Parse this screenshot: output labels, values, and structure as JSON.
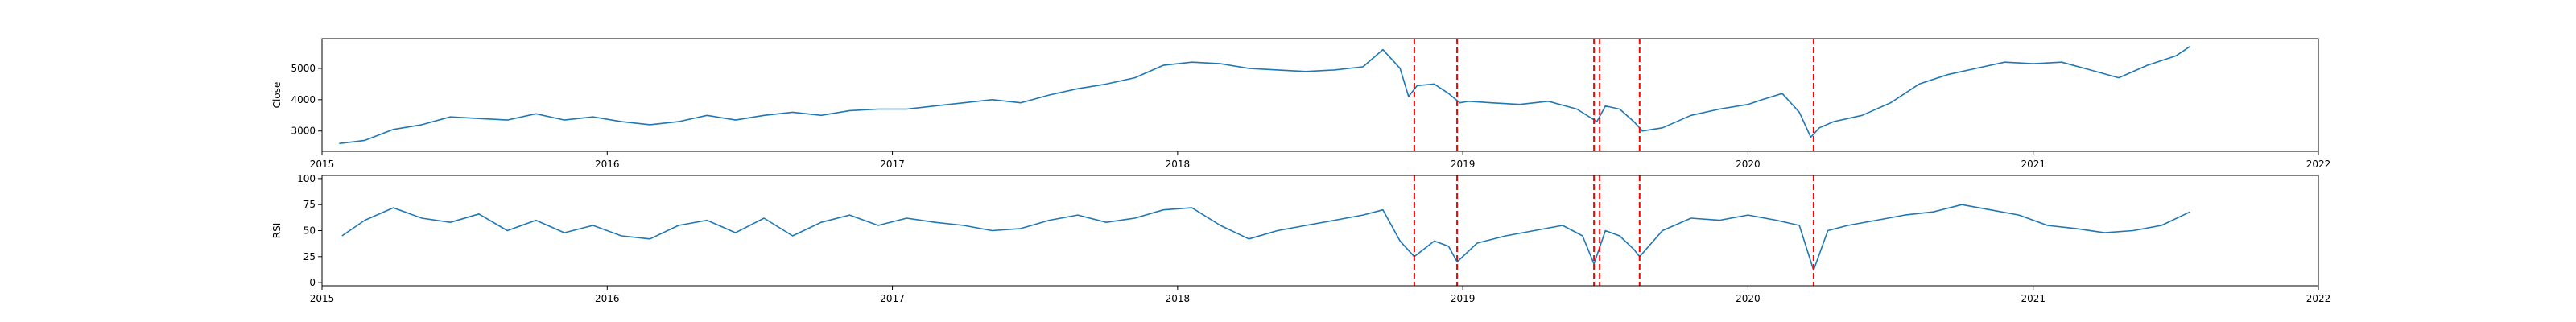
{
  "chart_data": [
    {
      "type": "line",
      "title": "",
      "xlabel": "",
      "ylabel": "Close",
      "xlim": [
        2015.0,
        2022.0
      ],
      "ylim": [
        2350,
        5950
      ],
      "xticks": [
        2015,
        2016,
        2017,
        2018,
        2019,
        2020,
        2021,
        2022
      ],
      "xtick_labels": [
        "2015",
        "2016",
        "2017",
        "2018",
        "2019",
        "2020",
        "2021",
        "2022"
      ],
      "yticks": [
        3000,
        4000,
        5000
      ],
      "ytick_labels": [
        "3000",
        "4000",
        "5000"
      ],
      "grid": false,
      "series_color": "#1f77b4",
      "series": [
        {
          "x": [
            2015.06,
            2015.15,
            2015.25,
            2015.35,
            2015.45,
            2015.55,
            2015.65,
            2015.75,
            2015.85,
            2015.95,
            2016.05,
            2016.15,
            2016.25,
            2016.35,
            2016.45,
            2016.55,
            2016.65,
            2016.75,
            2016.85,
            2016.95,
            2017.05,
            2017.15,
            2017.25,
            2017.35,
            2017.45,
            2017.55,
            2017.65,
            2017.75,
            2017.85,
            2017.95,
            2018.05,
            2018.15,
            2018.25,
            2018.35,
            2018.45,
            2018.55,
            2018.65,
            2018.72,
            2018.78,
            2018.81,
            2018.84,
            2018.9,
            2018.95,
            2018.99,
            2019.02,
            2019.1,
            2019.2,
            2019.3,
            2019.4,
            2019.47,
            2019.5,
            2019.55,
            2019.6,
            2019.63,
            2019.7,
            2019.8,
            2019.9,
            2020.0,
            2020.05,
            2020.12,
            2020.18,
            2020.22,
            2020.25,
            2020.3,
            2020.4,
            2020.5,
            2020.6,
            2020.7,
            2020.8,
            2020.9,
            2021.0,
            2021.1,
            2021.2,
            2021.3,
            2021.4,
            2021.5,
            2021.55
          ],
          "y": [
            2600,
            2700,
            3050,
            3200,
            3450,
            3400,
            3350,
            3550,
            3350,
            3450,
            3300,
            3200,
            3300,
            3500,
            3350,
            3500,
            3600,
            3500,
            3650,
            3700,
            3700,
            3800,
            3900,
            4000,
            3900,
            4150,
            4350,
            4500,
            4700,
            5100,
            5200,
            5150,
            5000,
            4950,
            4900,
            4950,
            5050,
            5600,
            5000,
            4100,
            4450,
            4500,
            4200,
            3900,
            3950,
            3900,
            3850,
            3950,
            3700,
            3300,
            3800,
            3700,
            3300,
            3000,
            3100,
            3500,
            3700,
            3850,
            4000,
            4200,
            3600,
            2800,
            3100,
            3300,
            3500,
            3900,
            4500,
            4800,
            5000,
            5200,
            5150,
            5200,
            4950,
            4700,
            5100,
            5400,
            5700
          ]
        }
      ],
      "events": [
        2018.83,
        2018.98,
        2019.46,
        2019.48,
        2019.62,
        2020.23
      ]
    },
    {
      "type": "line",
      "title": "",
      "xlabel": "",
      "ylabel": "RSI",
      "xlim": [
        2015.0,
        2022.0
      ],
      "ylim": [
        -3,
        103
      ],
      "xticks": [
        2015,
        2016,
        2017,
        2018,
        2019,
        2020,
        2021,
        2022
      ],
      "xtick_labels": [
        "2015",
        "2016",
        "2017",
        "2018",
        "2019",
        "2020",
        "2021",
        "2022"
      ],
      "yticks": [
        0,
        25,
        50,
        75,
        100
      ],
      "ytick_labels": [
        "0",
        "25",
        "50",
        "75",
        "100"
      ],
      "grid": false,
      "series_color": "#1f77b4",
      "series": [
        {
          "x": [
            2015.07,
            2015.15,
            2015.25,
            2015.35,
            2015.45,
            2015.55,
            2015.65,
            2015.75,
            2015.85,
            2015.95,
            2016.05,
            2016.15,
            2016.25,
            2016.35,
            2016.45,
            2016.55,
            2016.65,
            2016.75,
            2016.85,
            2016.95,
            2017.05,
            2017.15,
            2017.25,
            2017.35,
            2017.45,
            2017.55,
            2017.65,
            2017.75,
            2017.85,
            2017.95,
            2018.05,
            2018.15,
            2018.25,
            2018.35,
            2018.45,
            2018.55,
            2018.65,
            2018.72,
            2018.78,
            2018.83,
            2018.9,
            2018.95,
            2018.98,
            2019.05,
            2019.15,
            2019.25,
            2019.35,
            2019.42,
            2019.46,
            2019.5,
            2019.55,
            2019.6,
            2019.62,
            2019.7,
            2019.8,
            2019.9,
            2020.0,
            2020.1,
            2020.18,
            2020.23,
            2020.28,
            2020.35,
            2020.45,
            2020.55,
            2020.65,
            2020.75,
            2020.85,
            2020.95,
            2021.05,
            2021.15,
            2021.25,
            2021.35,
            2021.45,
            2021.55
          ],
          "y": [
            45,
            60,
            72,
            62,
            58,
            66,
            50,
            60,
            48,
            55,
            45,
            42,
            55,
            60,
            48,
            62,
            45,
            58,
            65,
            55,
            62,
            58,
            55,
            50,
            52,
            60,
            65,
            58,
            62,
            70,
            72,
            55,
            42,
            50,
            55,
            60,
            65,
            70,
            40,
            25,
            40,
            35,
            20,
            38,
            45,
            50,
            55,
            45,
            18,
            50,
            45,
            32,
            25,
            50,
            62,
            60,
            65,
            60,
            55,
            12,
            50,
            55,
            60,
            65,
            68,
            75,
            70,
            65,
            55,
            52,
            48,
            50,
            55,
            68
          ]
        }
      ],
      "events": [
        2018.83,
        2018.98,
        2019.46,
        2019.48,
        2019.62,
        2020.23
      ]
    }
  ]
}
